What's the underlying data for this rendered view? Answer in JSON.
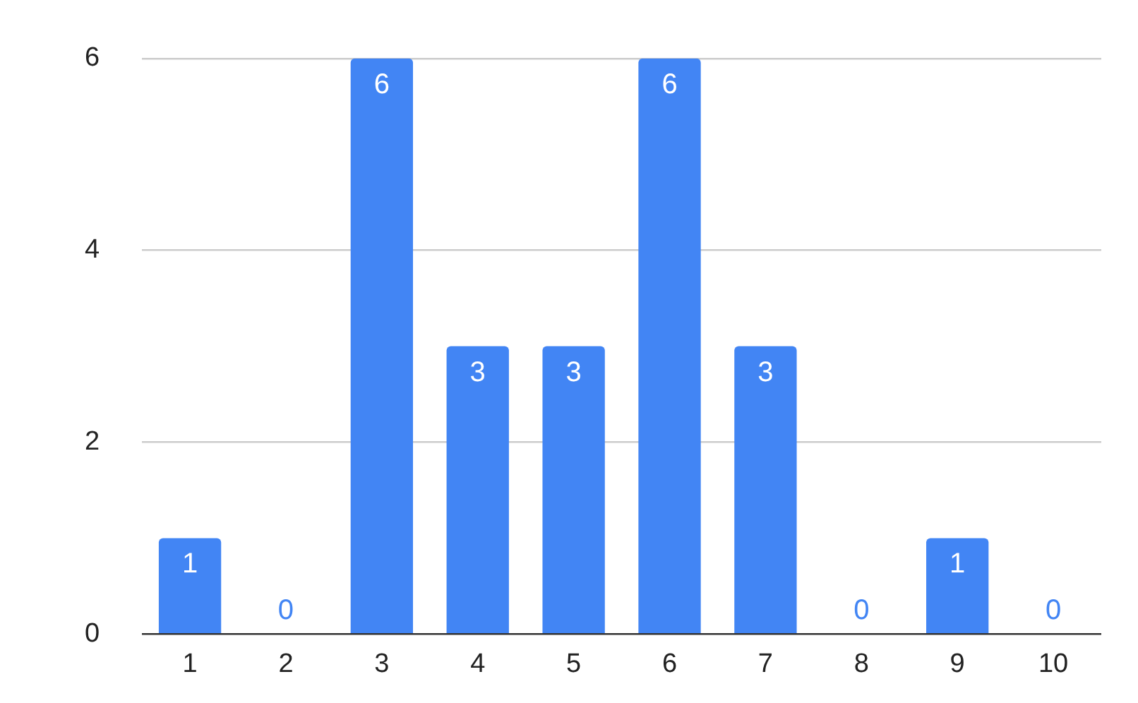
{
  "chart_data": {
    "type": "bar",
    "categories": [
      "1",
      "2",
      "3",
      "4",
      "5",
      "6",
      "7",
      "8",
      "9",
      "10"
    ],
    "values": [
      1,
      0,
      6,
      3,
      3,
      6,
      3,
      0,
      1,
      0
    ],
    "color": "#4285f4",
    "ylim": [
      0,
      6
    ],
    "yticks": [
      0,
      2,
      4,
      6
    ],
    "grid": "y",
    "data_labels": true
  }
}
